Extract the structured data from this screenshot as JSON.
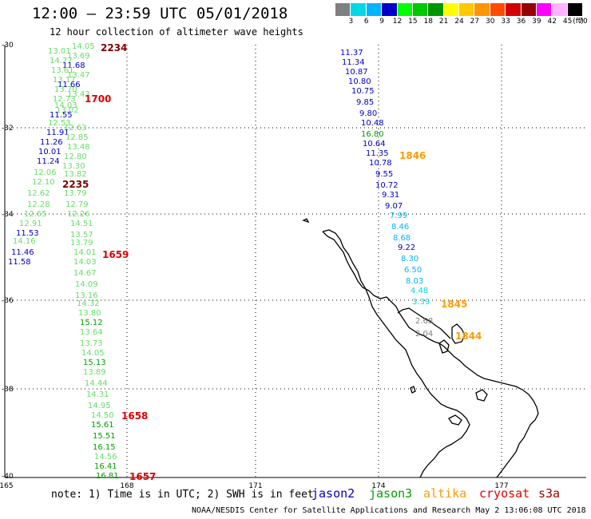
{
  "header": {
    "title": "12:00 – 23:59 UTC 05/01/2018",
    "subtitle": "12 hour collection of altimeter wave heights"
  },
  "legend": {
    "unit": "(ft)",
    "labels": [
      "3",
      "6",
      "9",
      "12",
      "15",
      "18",
      "21",
      "24",
      "27",
      "30",
      "33",
      "36",
      "39",
      "42",
      "45",
      "70"
    ],
    "colors": [
      "#7f7f7f",
      "#00d8e6",
      "#00b4ff",
      "#0000c8",
      "#00ff00",
      "#00c800",
      "#009600",
      "#ffff00",
      "#ffc800",
      "#ff9600",
      "#ff4b00",
      "#d20000",
      "#960000",
      "#ff00ff",
      "#ffb4ff",
      "#000000"
    ]
  },
  "axes": {
    "lat_ticks": [
      "-30",
      "-32",
      "-34",
      "-36",
      "-38",
      "-40"
    ],
    "lon_ticks": [
      "165",
      "168",
      "171",
      "174",
      "177"
    ]
  },
  "footer": {
    "note": "note: 1) Time is in UTC; 2) SWH is in feet",
    "satellites": [
      {
        "name": "jason2",
        "color": "#0000c8"
      },
      {
        "name": "jason3",
        "color": "#00a000"
      },
      {
        "name": "altika",
        "color": "#ff9a00"
      },
      {
        "name": "cryosat",
        "color": "#e00000"
      },
      {
        "name": "s3a",
        "color": "#a00000"
      }
    ],
    "credit": "NOAA/NESDIS Center for Satellite Applications and Research    May  2 13:06:08 UTC 2018"
  },
  "colors": {
    "jason2": "#0000c8",
    "jason3_light": "#66dd66",
    "jason3": "#00a000",
    "altika_light": "#00c8d8",
    "altika_gray": "#808080",
    "time_red": "#e00000",
    "time_dark": "#800000",
    "time_orange": "#ff9a00"
  },
  "track_west_1": [
    {
      "v": "14.05",
      "c": "#66dd66"
    },
    {
      "v": "13.01",
      "c": "#66dd66"
    },
    {
      "v": "13.69",
      "c": "#66dd66"
    },
    {
      "v": "14.77",
      "c": "#66dd66"
    },
    {
      "v": "11.68",
      "c": "#0000c8"
    },
    {
      "v": "13.61",
      "c": "#66dd66"
    },
    {
      "v": "13.47",
      "c": "#66dd66"
    },
    {
      "v": "13.17",
      "c": "#66dd66"
    },
    {
      "v": "11.66",
      "c": "#0000c8"
    },
    {
      "v": "13.70",
      "c": "#66dd66"
    },
    {
      "v": "13.43",
      "c": "#66dd66"
    },
    {
      "v": "12.73",
      "c": "#66dd66"
    },
    {
      "v": "14.03",
      "c": "#66dd66"
    },
    {
      "v": "13.02",
      "c": "#66dd66"
    },
    {
      "v": "11.55",
      "c": "#0000c8"
    },
    {
      "v": "12.53",
      "c": "#66dd66"
    },
    {
      "v": "12.63",
      "c": "#66dd66"
    },
    {
      "v": "11.91",
      "c": "#0000c8"
    },
    {
      "v": "12.85",
      "c": "#66dd66"
    },
    {
      "v": "11.26",
      "c": "#0000c8"
    },
    {
      "v": "13.48",
      "c": "#66dd66"
    },
    {
      "v": "10.01",
      "c": "#0000c8"
    },
    {
      "v": "12.80",
      "c": "#66dd66"
    },
    {
      "v": "11.24",
      "c": "#0000c8"
    },
    {
      "v": "13.30",
      "c": "#66dd66"
    },
    {
      "v": "12.06",
      "c": "#66dd66"
    },
    {
      "v": "13.82",
      "c": "#66dd66"
    },
    {
      "v": "12.10",
      "c": "#66dd66"
    },
    {
      "v": "13.79",
      "c": "#66dd66"
    },
    {
      "v": "12.62",
      "c": "#66dd66"
    },
    {
      "v": "12.28",
      "c": "#66dd66"
    },
    {
      "v": "12.79",
      "c": "#66dd66"
    },
    {
      "v": "12.65",
      "c": "#66dd66"
    },
    {
      "v": "12.26",
      "c": "#66dd66"
    },
    {
      "v": "12.91",
      "c": "#66dd66"
    },
    {
      "v": "14.51",
      "c": "#66dd66"
    },
    {
      "v": "11.53",
      "c": "#0000c8"
    },
    {
      "v": "13.57",
      "c": "#66dd66"
    },
    {
      "v": "14.16",
      "c": "#66dd66"
    },
    {
      "v": "13.79",
      "c": "#66dd66"
    },
    {
      "v": "11.46",
      "c": "#0000c8"
    },
    {
      "v": "14.01",
      "c": "#66dd66"
    },
    {
      "v": "11.58",
      "c": "#0000c8"
    },
    {
      "v": "14.03",
      "c": "#66dd66"
    },
    {
      "v": "14.67",
      "c": "#66dd66"
    },
    {
      "v": "14.09",
      "c": "#66dd66"
    },
    {
      "v": "13.16",
      "c": "#66dd66"
    },
    {
      "v": "14.32",
      "c": "#66dd66"
    },
    {
      "v": "13.80",
      "c": "#66dd66"
    },
    {
      "v": "15.12",
      "c": "#00a000"
    },
    {
      "v": "13.64",
      "c": "#66dd66"
    },
    {
      "v": "13.73",
      "c": "#66dd66"
    },
    {
      "v": "14.05",
      "c": "#66dd66"
    },
    {
      "v": "15.13",
      "c": "#00a000"
    },
    {
      "v": "13.89",
      "c": "#66dd66"
    },
    {
      "v": "14.44",
      "c": "#66dd66"
    },
    {
      "v": "14.31",
      "c": "#66dd66"
    },
    {
      "v": "14.95",
      "c": "#66dd66"
    },
    {
      "v": "14.50",
      "c": "#66dd66"
    },
    {
      "v": "15.61",
      "c": "#00a000"
    },
    {
      "v": "15.51",
      "c": "#00a000"
    },
    {
      "v": "16.15",
      "c": "#00a000"
    },
    {
      "v": "14.56",
      "c": "#66dd66"
    },
    {
      "v": "16.41",
      "c": "#00a000"
    },
    {
      "v": "16.81",
      "c": "#00a000"
    }
  ],
  "track_east": [
    {
      "v": "11.37",
      "c": "#0000c8"
    },
    {
      "v": "11.34",
      "c": "#0000c8"
    },
    {
      "v": "10.87",
      "c": "#0000c8"
    },
    {
      "v": "10.80",
      "c": "#0000c8"
    },
    {
      "v": "10.75",
      "c": "#0000c8"
    },
    {
      "v": "9.85",
      "c": "#0000c8"
    },
    {
      "v": "9.80",
      "c": "#0000c8"
    },
    {
      "v": "10.48",
      "c": "#0000c8"
    },
    {
      "v": "16.80",
      "c": "#00a000"
    },
    {
      "v": "10.64",
      "c": "#0000c8"
    },
    {
      "v": "11.35",
      "c": "#0000c8"
    },
    {
      "v": "10.78",
      "c": "#0000c8"
    },
    {
      "v": "9.55",
      "c": "#0000c8"
    },
    {
      "v": "10.72",
      "c": "#0000c8"
    },
    {
      "v": "9.31",
      "c": "#0000c8"
    },
    {
      "v": "9.07",
      "c": "#0000c8"
    },
    {
      "v": "7.99",
      "c": "#00b4ff"
    },
    {
      "v": "8.46",
      "c": "#00b4ff"
    },
    {
      "v": "8.68",
      "c": "#00b4ff"
    },
    {
      "v": "9.22",
      "c": "#0000c8"
    },
    {
      "v": "8.30",
      "c": "#00b4ff"
    },
    {
      "v": "6.50",
      "c": "#00b4ff"
    },
    {
      "v": "8.03",
      "c": "#00b4ff"
    },
    {
      "v": "4.48",
      "c": "#00d8e6"
    },
    {
      "v": "3.39",
      "c": "#00d8e6"
    },
    {
      "v": "2.68",
      "c": "#808080"
    },
    {
      "v": "2.04",
      "c": "#808080"
    }
  ],
  "times": [
    {
      "t": "2234",
      "c": "#800000"
    },
    {
      "t": "1700",
      "c": "#e00000"
    },
    {
      "t": "2235",
      "c": "#800000"
    },
    {
      "t": "1659",
      "c": "#e00000"
    },
    {
      "t": "1658",
      "c": "#e00000"
    },
    {
      "t": "1657",
      "c": "#e00000"
    },
    {
      "t": "1846",
      "c": "#ff9a00"
    },
    {
      "t": "1845",
      "c": "#ff9a00"
    },
    {
      "t": "1844",
      "c": "#ff9a00"
    }
  ]
}
